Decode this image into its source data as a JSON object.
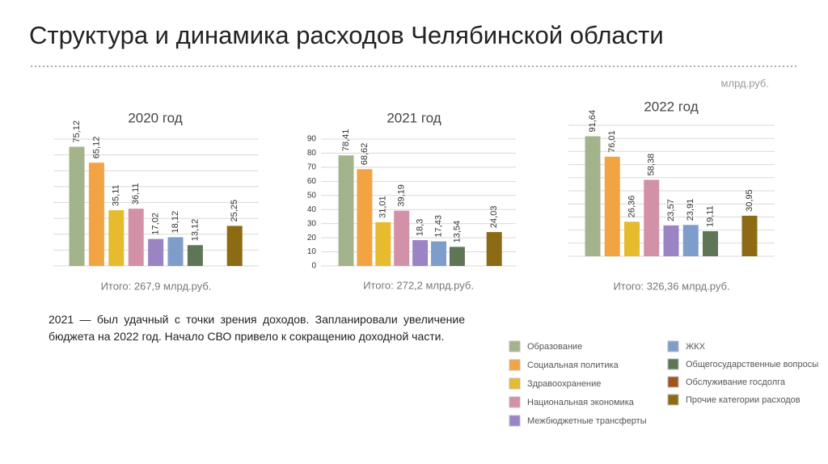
{
  "title": "Структура и динамика расходов Челябинской области",
  "unit": "млрд.руб.",
  "paragraph": "2021 — был удачный с точки зрения доходов. Запланировали увеличение бюджета на 2022 год. Начало СВО привело к сокращению доходной части.",
  "legend": {
    "categories": [
      "Образование",
      "Социальная политика",
      "Здравоохранение",
      "Национальная экономика",
      "Межбюджетные трансферты",
      "ЖКХ",
      "Общегосударственные вопросы",
      "Обслуживание госдолга",
      "Прочие категории расходов"
    ],
    "colors": [
      "#a3b38c",
      "#f2a444",
      "#e6bb2e",
      "#d391a8",
      "#9b84c4",
      "#7f9dcb",
      "#5f7656",
      "#a4541a",
      "#8c6b14"
    ]
  },
  "chart_data": [
    {
      "type": "bar",
      "title": "2020 год",
      "values": [
        75.12,
        65.12,
        35.11,
        36.11,
        17.02,
        18.12,
        13.12,
        null,
        25.25
      ],
      "value_labels": [
        "75,12",
        "65,12",
        "35,11",
        "36,11",
        "17,02",
        "18,12",
        "13,12",
        null,
        "25,25"
      ],
      "ylim": [
        0,
        80
      ],
      "yticks": [
        0,
        10,
        20,
        30,
        40,
        50,
        60,
        70,
        80
      ],
      "show_tick_labels": false,
      "grid": true,
      "total": "Итого: 267,9 млрд.руб."
    },
    {
      "type": "bar",
      "title": "2021 год",
      "values": [
        78.41,
        68.62,
        31.01,
        39.19,
        18.3,
        17.43,
        13.54,
        null,
        24.03
      ],
      "value_labels": [
        "78,41",
        "68,62",
        "31,01",
        "39,19",
        "18,3",
        "17,43",
        "13,54",
        null,
        "24,03"
      ],
      "ylim": [
        0,
        90
      ],
      "yticks": [
        0,
        10,
        20,
        30,
        40,
        50,
        60,
        70,
        80,
        90
      ],
      "show_tick_labels": true,
      "grid": true,
      "total": "Итого: 272,2 млрд.руб."
    },
    {
      "type": "bar",
      "title": "2022 год",
      "values": [
        91.64,
        76.01,
        26.36,
        58.38,
        23.57,
        23.91,
        19.11,
        null,
        30.95
      ],
      "value_labels": [
        "91,64",
        "76,01",
        "26,36",
        "58,38",
        "23,57",
        "23,91",
        "19,11",
        null,
        "30,95"
      ],
      "ylim": [
        0,
        100
      ],
      "yticks": [
        0,
        10,
        20,
        30,
        40,
        50,
        60,
        70,
        80,
        90,
        100
      ],
      "show_tick_labels": false,
      "grid": true,
      "total": "Итого: 326,36 млрд.руб."
    }
  ]
}
